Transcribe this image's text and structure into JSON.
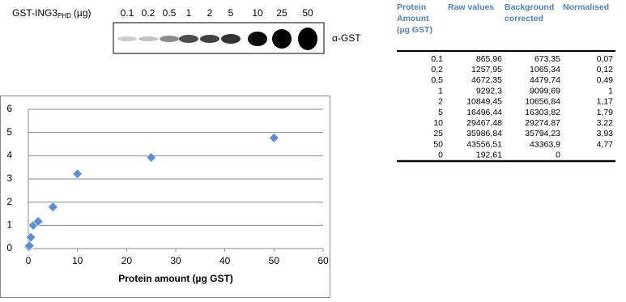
{
  "blot": {
    "label": {
      "main": "GST-ING3",
      "subscript": "PHD",
      "unit": "(µg)"
    },
    "lanes": [
      "0.1",
      "0.2",
      "0.5",
      "1",
      "2",
      "5",
      "10",
      "25",
      "50"
    ],
    "antibody": "α-GST"
  },
  "chart_data": {
    "type": "scatter",
    "x": [
      0.1,
      0.2,
      0.5,
      1,
      2,
      5,
      10,
      25,
      50
    ],
    "values": [
      0.07,
      0.12,
      0.49,
      1,
      1.17,
      1.79,
      3.22,
      3.93,
      4.77
    ],
    "xlabel": "Protein amount (µg GST)",
    "color": "#5a8fd6",
    "xlim": [
      0,
      60
    ],
    "xticks": [
      0,
      10,
      20,
      30,
      40,
      50,
      60
    ],
    "ylim": [
      0,
      6
    ],
    "yticks": [
      0,
      1,
      2,
      3,
      4,
      5,
      6
    ],
    "grid": true
  },
  "table": {
    "header": [
      [
        "Protein",
        "Amount",
        "(µg GST)"
      ],
      [
        "Raw values"
      ],
      [
        "Background",
        "corrected"
      ],
      [
        "Normalised"
      ]
    ],
    "rows": [
      [
        "0,1",
        "865,96",
        "673,35",
        "0,07"
      ],
      [
        "0,2",
        "1257,95",
        "1065,34",
        "0,12"
      ],
      [
        "0,5",
        "4672,35",
        "4479,74",
        "0,49"
      ],
      [
        "1",
        "9292,3",
        "9099,69",
        "1"
      ],
      [
        "2",
        "10849,45",
        "10656,84",
        "1,17"
      ],
      [
        "5",
        "16496,44",
        "16303,82",
        "1,79"
      ],
      [
        "10",
        "29467,48",
        "29274,87",
        "3,22"
      ],
      [
        "25",
        "35986,84",
        "35794,23",
        "3,93"
      ],
      [
        "50",
        "43556,51",
        "43363,9",
        "4,77"
      ],
      [
        "0",
        "192,61",
        "0"
      ]
    ]
  }
}
